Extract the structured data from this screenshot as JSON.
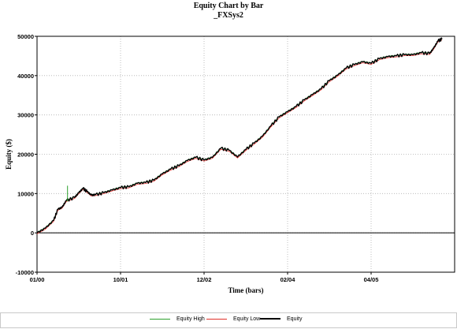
{
  "header": {
    "title": "Equity Chart by Bar",
    "subtitle": "_FXSys2"
  },
  "colors": {
    "equity": "#000000",
    "equity_high": "#2ca02c",
    "equity_low": "#e0302a",
    "grid": "#b0b0b0",
    "axis": "#000000"
  },
  "legend": {
    "items": [
      {
        "label": "Equity High",
        "color": "#2ca02c"
      },
      {
        "label": "Equity Low",
        "color": "#e0302a"
      },
      {
        "label": "Equity",
        "color": "#000000"
      }
    ]
  },
  "chart_data": {
    "type": "line",
    "title": "Equity Chart by Bar",
    "subtitle": "_FXSys2",
    "xlabel": "Time (bars)",
    "ylabel": "Equity ($)",
    "xlim": [
      0,
      100
    ],
    "ylim": [
      -10000,
      50000
    ],
    "x_tick_positions": [
      0,
      20,
      40,
      60,
      80
    ],
    "x_ticks": [
      "01/00",
      "10/01",
      "12/02",
      "02/04",
      "04/05"
    ],
    "y_ticks": [
      -10000,
      0,
      10000,
      20000,
      30000,
      40000,
      50000
    ],
    "grid": true,
    "legend_position": "bottom",
    "series": [
      {
        "name": "Equity",
        "color": "#000000",
        "x": [
          0,
          2,
          4,
          5,
          6,
          7,
          9,
          10,
          11,
          12,
          13,
          14,
          16,
          18,
          20,
          22,
          24,
          26,
          28,
          30,
          32,
          34,
          36,
          38,
          40,
          42,
          44,
          46,
          48,
          50,
          52,
          54,
          56,
          58,
          60,
          62,
          64,
          66,
          68,
          70,
          72,
          74,
          76,
          78,
          80,
          82,
          84,
          86,
          88,
          90,
          92,
          94,
          95,
          96,
          97
        ],
        "y": [
          0,
          1200,
          3200,
          6000,
          6500,
          8200,
          9000,
          10200,
          11300,
          10500,
          9600,
          9700,
          10200,
          10900,
          11500,
          11700,
          12600,
          12800,
          13400,
          15000,
          16200,
          17100,
          18400,
          19200,
          18500,
          19200,
          21500,
          21000,
          19300,
          21200,
          22800,
          24600,
          27200,
          29500,
          30800,
          32100,
          33800,
          35200,
          36600,
          38700,
          40100,
          41900,
          42800,
          43500,
          43100,
          44300,
          44800,
          45000,
          45300,
          45300,
          45800,
          45600,
          47000,
          48800,
          49300
        ]
      }
    ]
  },
  "annotations": {
    "equity_high_spike": {
      "x": 7.3,
      "y_from": 8000,
      "y_to": 12000
    }
  }
}
